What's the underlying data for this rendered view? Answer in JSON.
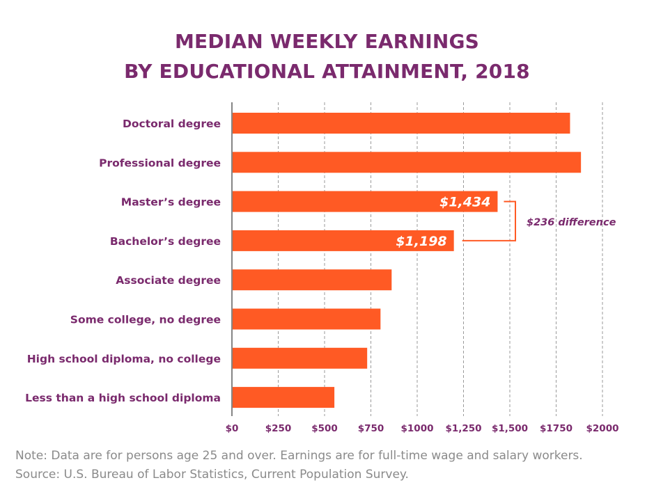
{
  "colors": {
    "title": "#7a2a6d",
    "bar": "#ff5a24",
    "label": "#7a2a6d",
    "note": "#8a8a8a",
    "grid": "#9a9a9a",
    "axis": "#333333"
  },
  "notes": {
    "line1": "Note: Data are for persons age 25 and over. Earnings are for full-time wage and salary workers.",
    "line2": "Source: U.S. Bureau of Labor Statistics, Current Population Survey."
  },
  "chart_data": {
    "type": "bar",
    "orientation": "horizontal",
    "title": [
      "MEDIAN WEEKLY EARNINGS",
      "BY EDUCATIONAL ATTAINMENT, 2018"
    ],
    "xlabel": "",
    "ylabel": "",
    "xlim": [
      0,
      2000
    ],
    "grid": true,
    "categories": [
      "Doctoral degree",
      "Professional degree",
      "Master’s degree",
      "Bachelor’s degree",
      "Associate degree",
      "Some college, no degree",
      "High school diploma, no college",
      "Less than a high school diploma"
    ],
    "values": [
      1825,
      1884,
      1434,
      1198,
      862,
      802,
      730,
      553
    ],
    "data_labels": {
      "2": "$1,434",
      "3": "$1,198"
    },
    "x_ticks": [
      0,
      250,
      500,
      750,
      1000,
      1250,
      1500,
      1750,
      2000
    ],
    "x_tick_labels": [
      "$0",
      "$250",
      "$500",
      "$750",
      "$1000",
      "$1,250",
      "$1,500",
      "$1750",
      "$2000"
    ],
    "annotation": {
      "text": "$236 difference",
      "between": [
        2,
        3
      ]
    }
  }
}
